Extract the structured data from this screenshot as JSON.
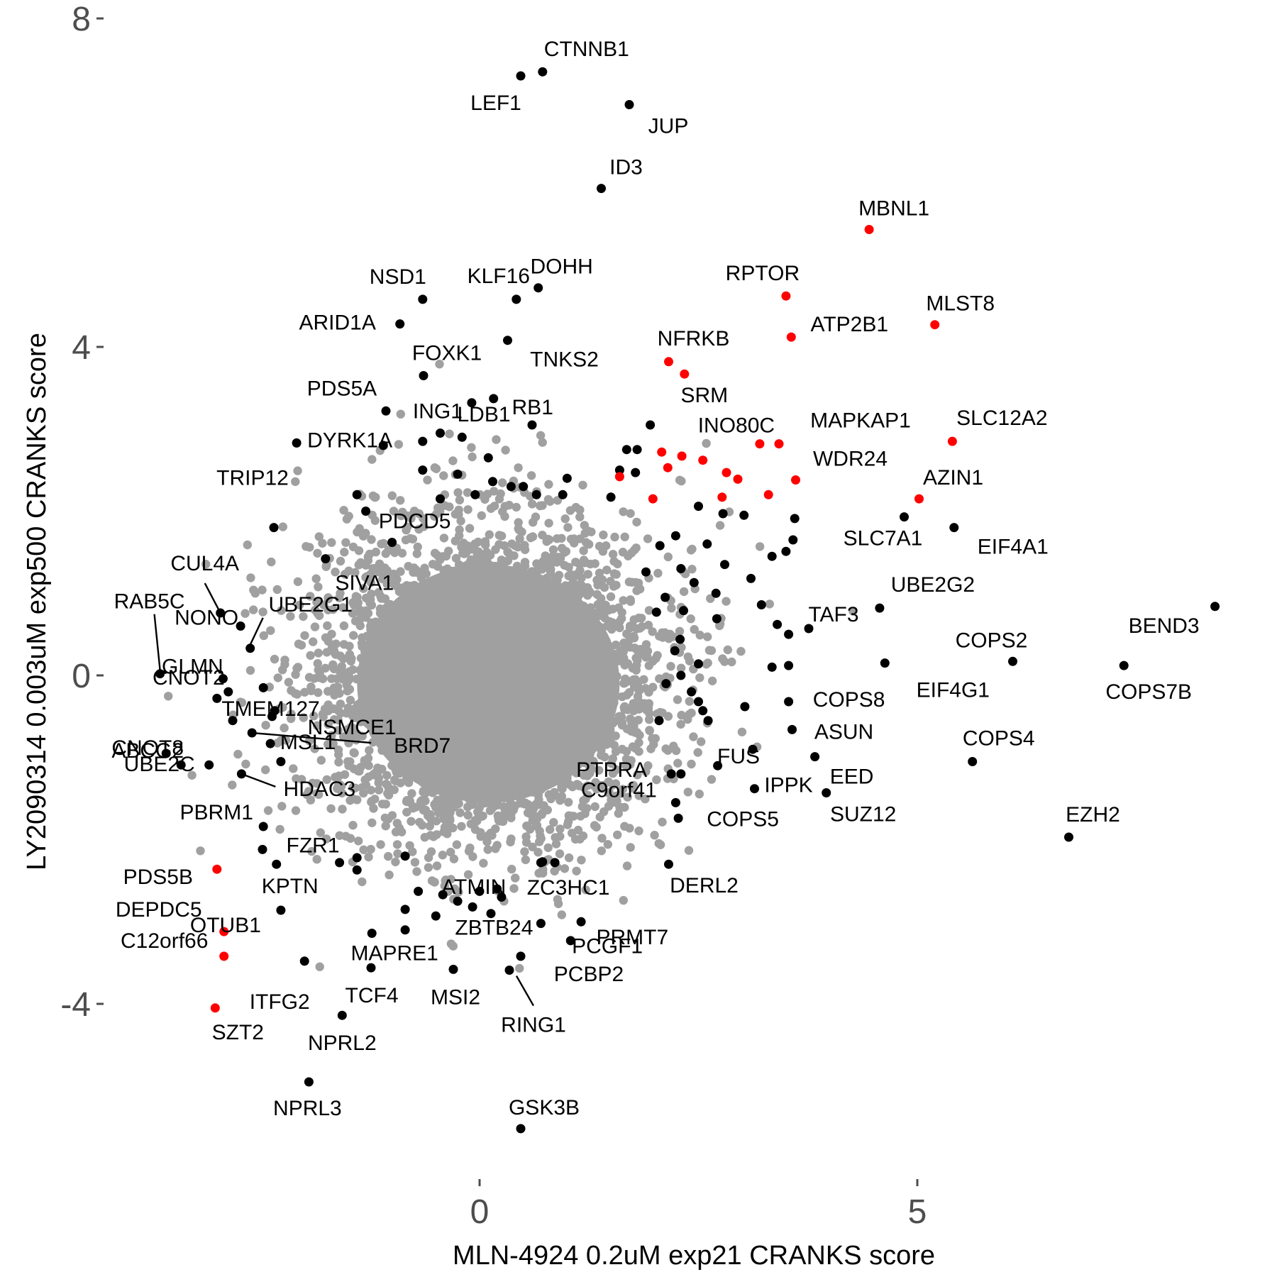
{
  "chart_data": {
    "type": "scatter",
    "xlabel": "MLN-4924 0.2uM exp21 CRANKS score",
    "ylabel": "LY2090314 0.003uM exp500 CRANKS score",
    "xlim": [
      -4.1,
      8.55
    ],
    "ylim": [
      -5.8,
      8.25
    ],
    "x_ticks": [
      0,
      5
    ],
    "y_ticks": [
      -4,
      0,
      4,
      8
    ],
    "grid": false,
    "colors": {
      "background": "#FFFFFF",
      "labeled_hit": "#000000",
      "highlight": "#FF0000",
      "background_gene": "#A0A0A0",
      "axis_text": "#4D4D4D"
    },
    "background_cloud": {
      "center": [
        0.1,
        -0.1
      ],
      "n_points": 4000,
      "color": "#A0A0A0"
    },
    "labeled_points": [
      {
        "label": "CTNNB1",
        "x": 0.72,
        "y": 7.35,
        "color": "black"
      },
      {
        "label": "LEF1",
        "x": 0.47,
        "y": 7.3,
        "color": "black"
      },
      {
        "label": "JUP",
        "x": 1.71,
        "y": 6.95,
        "color": "black"
      },
      {
        "label": "ID3",
        "x": 1.39,
        "y": 5.93,
        "color": "black"
      },
      {
        "label": "MBNL1",
        "x": 4.45,
        "y": 5.43,
        "color": "red"
      },
      {
        "label": "RPTOR",
        "x": 3.5,
        "y": 4.62,
        "color": "red"
      },
      {
        "label": "MLST8",
        "x": 5.2,
        "y": 4.27,
        "color": "red"
      },
      {
        "label": "ATP2B1",
        "x": 3.56,
        "y": 4.12,
        "color": "red"
      },
      {
        "label": "NFRKB",
        "x": 2.16,
        "y": 3.82,
        "color": "red"
      },
      {
        "label": "SRM",
        "x": 2.34,
        "y": 3.67,
        "color": "red"
      },
      {
        "label": "NSD1",
        "x": -0.65,
        "y": 4.58,
        "color": "black"
      },
      {
        "label": "DOHH",
        "x": 0.67,
        "y": 4.72,
        "color": "black"
      },
      {
        "label": "ARID1A",
        "x": -0.91,
        "y": 4.28,
        "color": "black"
      },
      {
        "label": "KLF16",
        "x": 0.42,
        "y": 4.58,
        "color": "black"
      },
      {
        "label": "TNKS2",
        "x": 0.32,
        "y": 4.08,
        "color": "black"
      },
      {
        "label": "FOXK1",
        "x": -0.64,
        "y": 3.65,
        "color": "black"
      },
      {
        "label": "ING1",
        "x": -0.09,
        "y": 3.32,
        "color": "black"
      },
      {
        "label": "RB1",
        "x": 0.16,
        "y": 3.37,
        "color": "black"
      },
      {
        "label": "PDS5A",
        "x": -1.07,
        "y": 3.22,
        "color": "black"
      },
      {
        "label": "LDB1",
        "x": 0.6,
        "y": 3.05,
        "color": "black"
      },
      {
        "label": "DYRK1A",
        "x": -2.09,
        "y": 2.83,
        "color": "black"
      },
      {
        "label": "TRIP12",
        "x": -2.35,
        "y": 1.8,
        "color": "black"
      },
      {
        "label": "SLC12A2",
        "x": 5.4,
        "y": 2.85,
        "color": "red"
      },
      {
        "label": "MAPKAP1",
        "x": 3.42,
        "y": 2.82,
        "color": "red"
      },
      {
        "label": "INO80C",
        "x": 3.2,
        "y": 2.82,
        "color": "red"
      },
      {
        "label": "WDR24",
        "x": 3.61,
        "y": 2.38,
        "color": "red"
      },
      {
        "label": "AZIN1",
        "x": 5.02,
        "y": 2.15,
        "color": "red"
      },
      {
        "label": "SLC7A1",
        "x": 4.85,
        "y": 1.93,
        "color": "black"
      },
      {
        "label": "EIF4A1",
        "x": 5.42,
        "y": 1.8,
        "color": "black"
      },
      {
        "label": "PDCD5",
        "x": -1.0,
        "y": 1.62,
        "color": "black"
      },
      {
        "label": "SIVA1",
        "x": -1.76,
        "y": 1.42,
        "color": "black"
      },
      {
        "label": "CUL4A",
        "x": -2.96,
        "y": 0.76,
        "color": "black"
      },
      {
        "label": "RAB5C",
        "x": -3.65,
        "y": 0.02,
        "color": "black"
      },
      {
        "label": "UBE2G1",
        "x": -2.62,
        "y": 0.33,
        "color": "black"
      },
      {
        "label": "NONO",
        "x": -2.73,
        "y": 0.6,
        "color": "black"
      },
      {
        "label": "UBE2G2",
        "x": 4.57,
        "y": 0.82,
        "color": "black"
      },
      {
        "label": "TAF3",
        "x": 3.76,
        "y": 0.57,
        "color": "black"
      },
      {
        "label": "BEND3",
        "x": 8.4,
        "y": 0.84,
        "color": "black"
      },
      {
        "label": "COPS2",
        "x": 6.09,
        "y": 0.17,
        "color": "black"
      },
      {
        "label": "COPS7B",
        "x": 7.36,
        "y": 0.12,
        "color": "black"
      },
      {
        "label": "EIF4G1",
        "x": 4.63,
        "y": 0.15,
        "color": "black"
      },
      {
        "label": "GLMN",
        "x": -2.93,
        "y": -0.04,
        "color": "black"
      },
      {
        "label": "CNOT2",
        "x": -2.87,
        "y": -0.2,
        "color": "black"
      },
      {
        "label": "COPS8",
        "x": 3.53,
        "y": -0.32,
        "color": "black"
      },
      {
        "label": "NSMCE1",
        "x": -2.34,
        "y": -0.43,
        "color": "black"
      },
      {
        "label": "TMEM127",
        "x": -2.37,
        "y": -0.5,
        "color": "black"
      },
      {
        "label": "ASUN",
        "x": 3.57,
        "y": -0.66,
        "color": "black"
      },
      {
        "label": "FUS",
        "x": 3.12,
        "y": -0.9,
        "color": "black"
      },
      {
        "label": "CNOT8",
        "x": -3.58,
        "y": -0.95,
        "color": "black"
      },
      {
        "label": "MSL1",
        "x": -2.39,
        "y": -0.83,
        "color": "black"
      },
      {
        "label": "BRD7",
        "x": -2.6,
        "y": -0.7,
        "color": "black"
      },
      {
        "label": "UBE2C",
        "x": -3.09,
        "y": -1.09,
        "color": "black"
      },
      {
        "label": "PTPRA",
        "x": 2.19,
        "y": -1.2,
        "color": "black"
      },
      {
        "label": "COPS4",
        "x": 5.63,
        "y": -1.05,
        "color": "black"
      },
      {
        "label": "EED",
        "x": 3.83,
        "y": -0.99,
        "color": "black"
      },
      {
        "label": "IPPK",
        "x": 3.14,
        "y": -1.38,
        "color": "black"
      },
      {
        "label": "SUZ12",
        "x": 3.96,
        "y": -1.43,
        "color": "black"
      },
      {
        "label": "ABCG2",
        "x": -3.41,
        "y": -1.09,
        "color": "black"
      },
      {
        "label": "HDAC3",
        "x": -2.72,
        "y": -1.2,
        "color": "black"
      },
      {
        "label": "C9orf41",
        "x": 2.24,
        "y": -1.55,
        "color": "black"
      },
      {
        "label": "COPS5",
        "x": 2.27,
        "y": -1.74,
        "color": "black"
      },
      {
        "label": "EZH2",
        "x": 6.73,
        "y": -1.97,
        "color": "black"
      },
      {
        "label": "DERL2",
        "x": 2.16,
        "y": -2.3,
        "color": "black"
      },
      {
        "label": "PBRM1",
        "x": -2.47,
        "y": -1.84,
        "color": "black"
      },
      {
        "label": "FZR1",
        "x": -2.48,
        "y": -2.12,
        "color": "black"
      },
      {
        "label": "ATMIN",
        "x": 0.72,
        "y": -2.27,
        "color": "black"
      },
      {
        "label": "ZC3HC1",
        "x": 0.86,
        "y": -2.28,
        "color": "black"
      },
      {
        "label": "PDS5B",
        "x": -3.0,
        "y": -2.36,
        "color": "red"
      },
      {
        "label": "KPTN",
        "x": -2.32,
        "y": -2.3,
        "color": "black"
      },
      {
        "label": "PCGF1",
        "x": 1.16,
        "y": -3.0,
        "color": "black"
      },
      {
        "label": "DEPDC5",
        "x": -2.92,
        "y": -3.12,
        "color": "red"
      },
      {
        "label": "OTUB1",
        "x": -2.27,
        "y": -2.86,
        "color": "black"
      },
      {
        "label": "ZBTB24",
        "x": 0.7,
        "y": -3.02,
        "color": "black"
      },
      {
        "label": "PRMT7",
        "x": 1.04,
        "y": -3.23,
        "color": "black"
      },
      {
        "label": "MAPRE1",
        "x": -1.23,
        "y": -3.14,
        "color": "black"
      },
      {
        "label": "C12orf66",
        "x": -2.92,
        "y": -3.42,
        "color": "red"
      },
      {
        "label": "PCBP2",
        "x": 0.47,
        "y": -3.42,
        "color": "black"
      },
      {
        "label": "ITFG2",
        "x": -2.0,
        "y": -3.48,
        "color": "black"
      },
      {
        "label": "TCF4",
        "x": -1.24,
        "y": -3.56,
        "color": "black"
      },
      {
        "label": "MSI2",
        "x": -0.3,
        "y": -3.58,
        "color": "black"
      },
      {
        "label": "RING1",
        "x": 0.34,
        "y": -3.59,
        "color": "black"
      },
      {
        "label": "SZT2",
        "x": -3.02,
        "y": -4.05,
        "color": "red"
      },
      {
        "label": "NPRL2",
        "x": -1.57,
        "y": -4.14,
        "color": "black"
      },
      {
        "label": "NPRL3",
        "x": -1.95,
        "y": -4.95,
        "color": "black"
      },
      {
        "label": "GSK3B",
        "x": 0.47,
        "y": -5.52,
        "color": "black"
      }
    ],
    "unlabeled_points": [
      {
        "x": 3.6,
        "y": 1.91,
        "color": "black"
      },
      {
        "x": 3.58,
        "y": 1.65,
        "color": "black"
      },
      {
        "x": 3.5,
        "y": 1.51,
        "color": "black"
      },
      {
        "x": 3.34,
        "y": 1.45,
        "color": "black"
      },
      {
        "x": 3.1,
        "y": 1.18,
        "color": "black"
      },
      {
        "x": 2.8,
        "y": 1.35,
        "color": "black"
      },
      {
        "x": 2.6,
        "y": 1.6,
        "color": "black"
      },
      {
        "x": 3.02,
        "y": 1.95,
        "color": "black"
      },
      {
        "x": 2.78,
        "y": 1.97,
        "color": "black"
      },
      {
        "x": 2.5,
        "y": 2.06,
        "color": "black"
      },
      {
        "x": 2.24,
        "y": 1.7,
        "color": "black"
      },
      {
        "x": 2.06,
        "y": 1.58,
        "color": "black"
      },
      {
        "x": 1.9,
        "y": 1.26,
        "color": "black"
      },
      {
        "x": 2.3,
        "y": 1.3,
        "color": "black"
      },
      {
        "x": 2.45,
        "y": 1.13,
        "color": "black"
      },
      {
        "x": 2.33,
        "y": 0.79,
        "color": "black"
      },
      {
        "x": 2.12,
        "y": 0.95,
        "color": "black"
      },
      {
        "x": 2.02,
        "y": 0.77,
        "color": "black"
      },
      {
        "x": 2.7,
        "y": 1.0,
        "color": "black"
      },
      {
        "x": 3.22,
        "y": 0.86,
        "color": "black"
      },
      {
        "x": 3.4,
        "y": 0.62,
        "color": "black"
      },
      {
        "x": 3.53,
        "y": 0.5,
        "color": "black"
      },
      {
        "x": 2.71,
        "y": 0.69,
        "color": "black"
      },
      {
        "x": 2.29,
        "y": 0.44,
        "color": "black"
      },
      {
        "x": 2.23,
        "y": 0.3,
        "color": "black"
      },
      {
        "x": 2.5,
        "y": 0.14,
        "color": "black"
      },
      {
        "x": 2.3,
        "y": 0.0,
        "color": "black"
      },
      {
        "x": 2.13,
        "y": -0.1,
        "color": "black"
      },
      {
        "x": 2.42,
        "y": -0.2,
        "color": "black"
      },
      {
        "x": 2.5,
        "y": -0.32,
        "color": "black"
      },
      {
        "x": 2.55,
        "y": -0.43,
        "color": "black"
      },
      {
        "x": 2.61,
        "y": -0.55,
        "color": "black"
      },
      {
        "x": 2.05,
        "y": -0.55,
        "color": "black"
      },
      {
        "x": 3.34,
        "y": 0.1,
        "color": "black"
      },
      {
        "x": 3.53,
        "y": 0.12,
        "color": "black"
      },
      {
        "x": 3.03,
        "y": -0.38,
        "color": "black"
      },
      {
        "x": 2.72,
        "y": -1.1,
        "color": "black"
      },
      {
        "x": 2.3,
        "y": -1.2,
        "color": "black"
      },
      {
        "x": 1.95,
        "y": 3.05,
        "color": "black"
      },
      {
        "x": 1.8,
        "y": 2.75,
        "color": "black"
      },
      {
        "x": 1.68,
        "y": 2.75,
        "color": "black"
      },
      {
        "x": 1.78,
        "y": 2.47,
        "color": "black"
      },
      {
        "x": 1.6,
        "y": 2.5,
        "color": "black"
      },
      {
        "x": 1.5,
        "y": 2.17,
        "color": "black"
      },
      {
        "x": 1.0,
        "y": 2.4,
        "color": "black"
      },
      {
        "x": 0.95,
        "y": 2.2,
        "color": "black"
      },
      {
        "x": 0.65,
        "y": 2.2,
        "color": "black"
      },
      {
        "x": 0.5,
        "y": 2.3,
        "color": "black"
      },
      {
        "x": 0.36,
        "y": 2.3,
        "color": "black"
      },
      {
        "x": 0.15,
        "y": 2.36,
        "color": "black"
      },
      {
        "x": -0.05,
        "y": 2.2,
        "color": "black"
      },
      {
        "x": -0.25,
        "y": 2.45,
        "color": "black"
      },
      {
        "x": -0.45,
        "y": 2.15,
        "color": "black"
      },
      {
        "x": -0.65,
        "y": 2.85,
        "color": "black"
      },
      {
        "x": -0.45,
        "y": 2.95,
        "color": "black"
      },
      {
        "x": -0.2,
        "y": 2.9,
        "color": "black"
      },
      {
        "x": 0.1,
        "y": 2.65,
        "color": "black"
      },
      {
        "x": -0.65,
        "y": 2.5,
        "color": "black"
      },
      {
        "x": -1.1,
        "y": 2.8,
        "color": "black"
      },
      {
        "x": -1.4,
        "y": 2.2,
        "color": "black"
      },
      {
        "x": -1.3,
        "y": 2.0,
        "color": "black"
      },
      {
        "x": 1.6,
        "y": 2.42,
        "color": "red"
      },
      {
        "x": 2.08,
        "y": 2.72,
        "color": "red"
      },
      {
        "x": 2.31,
        "y": 2.67,
        "color": "red"
      },
      {
        "x": 2.55,
        "y": 2.62,
        "color": "red"
      },
      {
        "x": 2.15,
        "y": 2.53,
        "color": "red"
      },
      {
        "x": 2.82,
        "y": 2.47,
        "color": "red"
      },
      {
        "x": 2.95,
        "y": 2.39,
        "color": "red"
      },
      {
        "x": 2.77,
        "y": 2.17,
        "color": "red"
      },
      {
        "x": 3.3,
        "y": 2.2,
        "color": "red"
      },
      {
        "x": 1.98,
        "y": 2.15,
        "color": "red"
      },
      {
        "x": -2.47,
        "y": -0.15,
        "color": "black"
      },
      {
        "x": -2.82,
        "y": -0.55,
        "color": "black"
      },
      {
        "x": -3.0,
        "y": -0.28,
        "color": "black"
      },
      {
        "x": -2.27,
        "y": -1.05,
        "color": "black"
      },
      {
        "x": -1.6,
        "y": -2.28,
        "color": "black"
      },
      {
        "x": -1.4,
        "y": -2.22,
        "color": "black"
      },
      {
        "x": -1.4,
        "y": -2.37,
        "color": "black"
      },
      {
        "x": -0.85,
        "y": -2.2,
        "color": "black"
      },
      {
        "x": -0.7,
        "y": -2.63,
        "color": "black"
      },
      {
        "x": -0.42,
        "y": -2.67,
        "color": "black"
      },
      {
        "x": -0.25,
        "y": -2.75,
        "color": "black"
      },
      {
        "x": 0.0,
        "y": -2.63,
        "color": "black"
      },
      {
        "x": 0.2,
        "y": -2.6,
        "color": "black"
      },
      {
        "x": 0.25,
        "y": -2.7,
        "color": "black"
      },
      {
        "x": -0.08,
        "y": -2.82,
        "color": "black"
      },
      {
        "x": -0.5,
        "y": -2.93,
        "color": "black"
      },
      {
        "x": -0.85,
        "y": -2.85,
        "color": "black"
      },
      {
        "x": 0.7,
        "y": -2.28,
        "color": "black"
      },
      {
        "x": 0.13,
        "y": -2.9,
        "color": "black"
      },
      {
        "x": -0.85,
        "y": -3.1,
        "color": "black"
      }
    ]
  }
}
